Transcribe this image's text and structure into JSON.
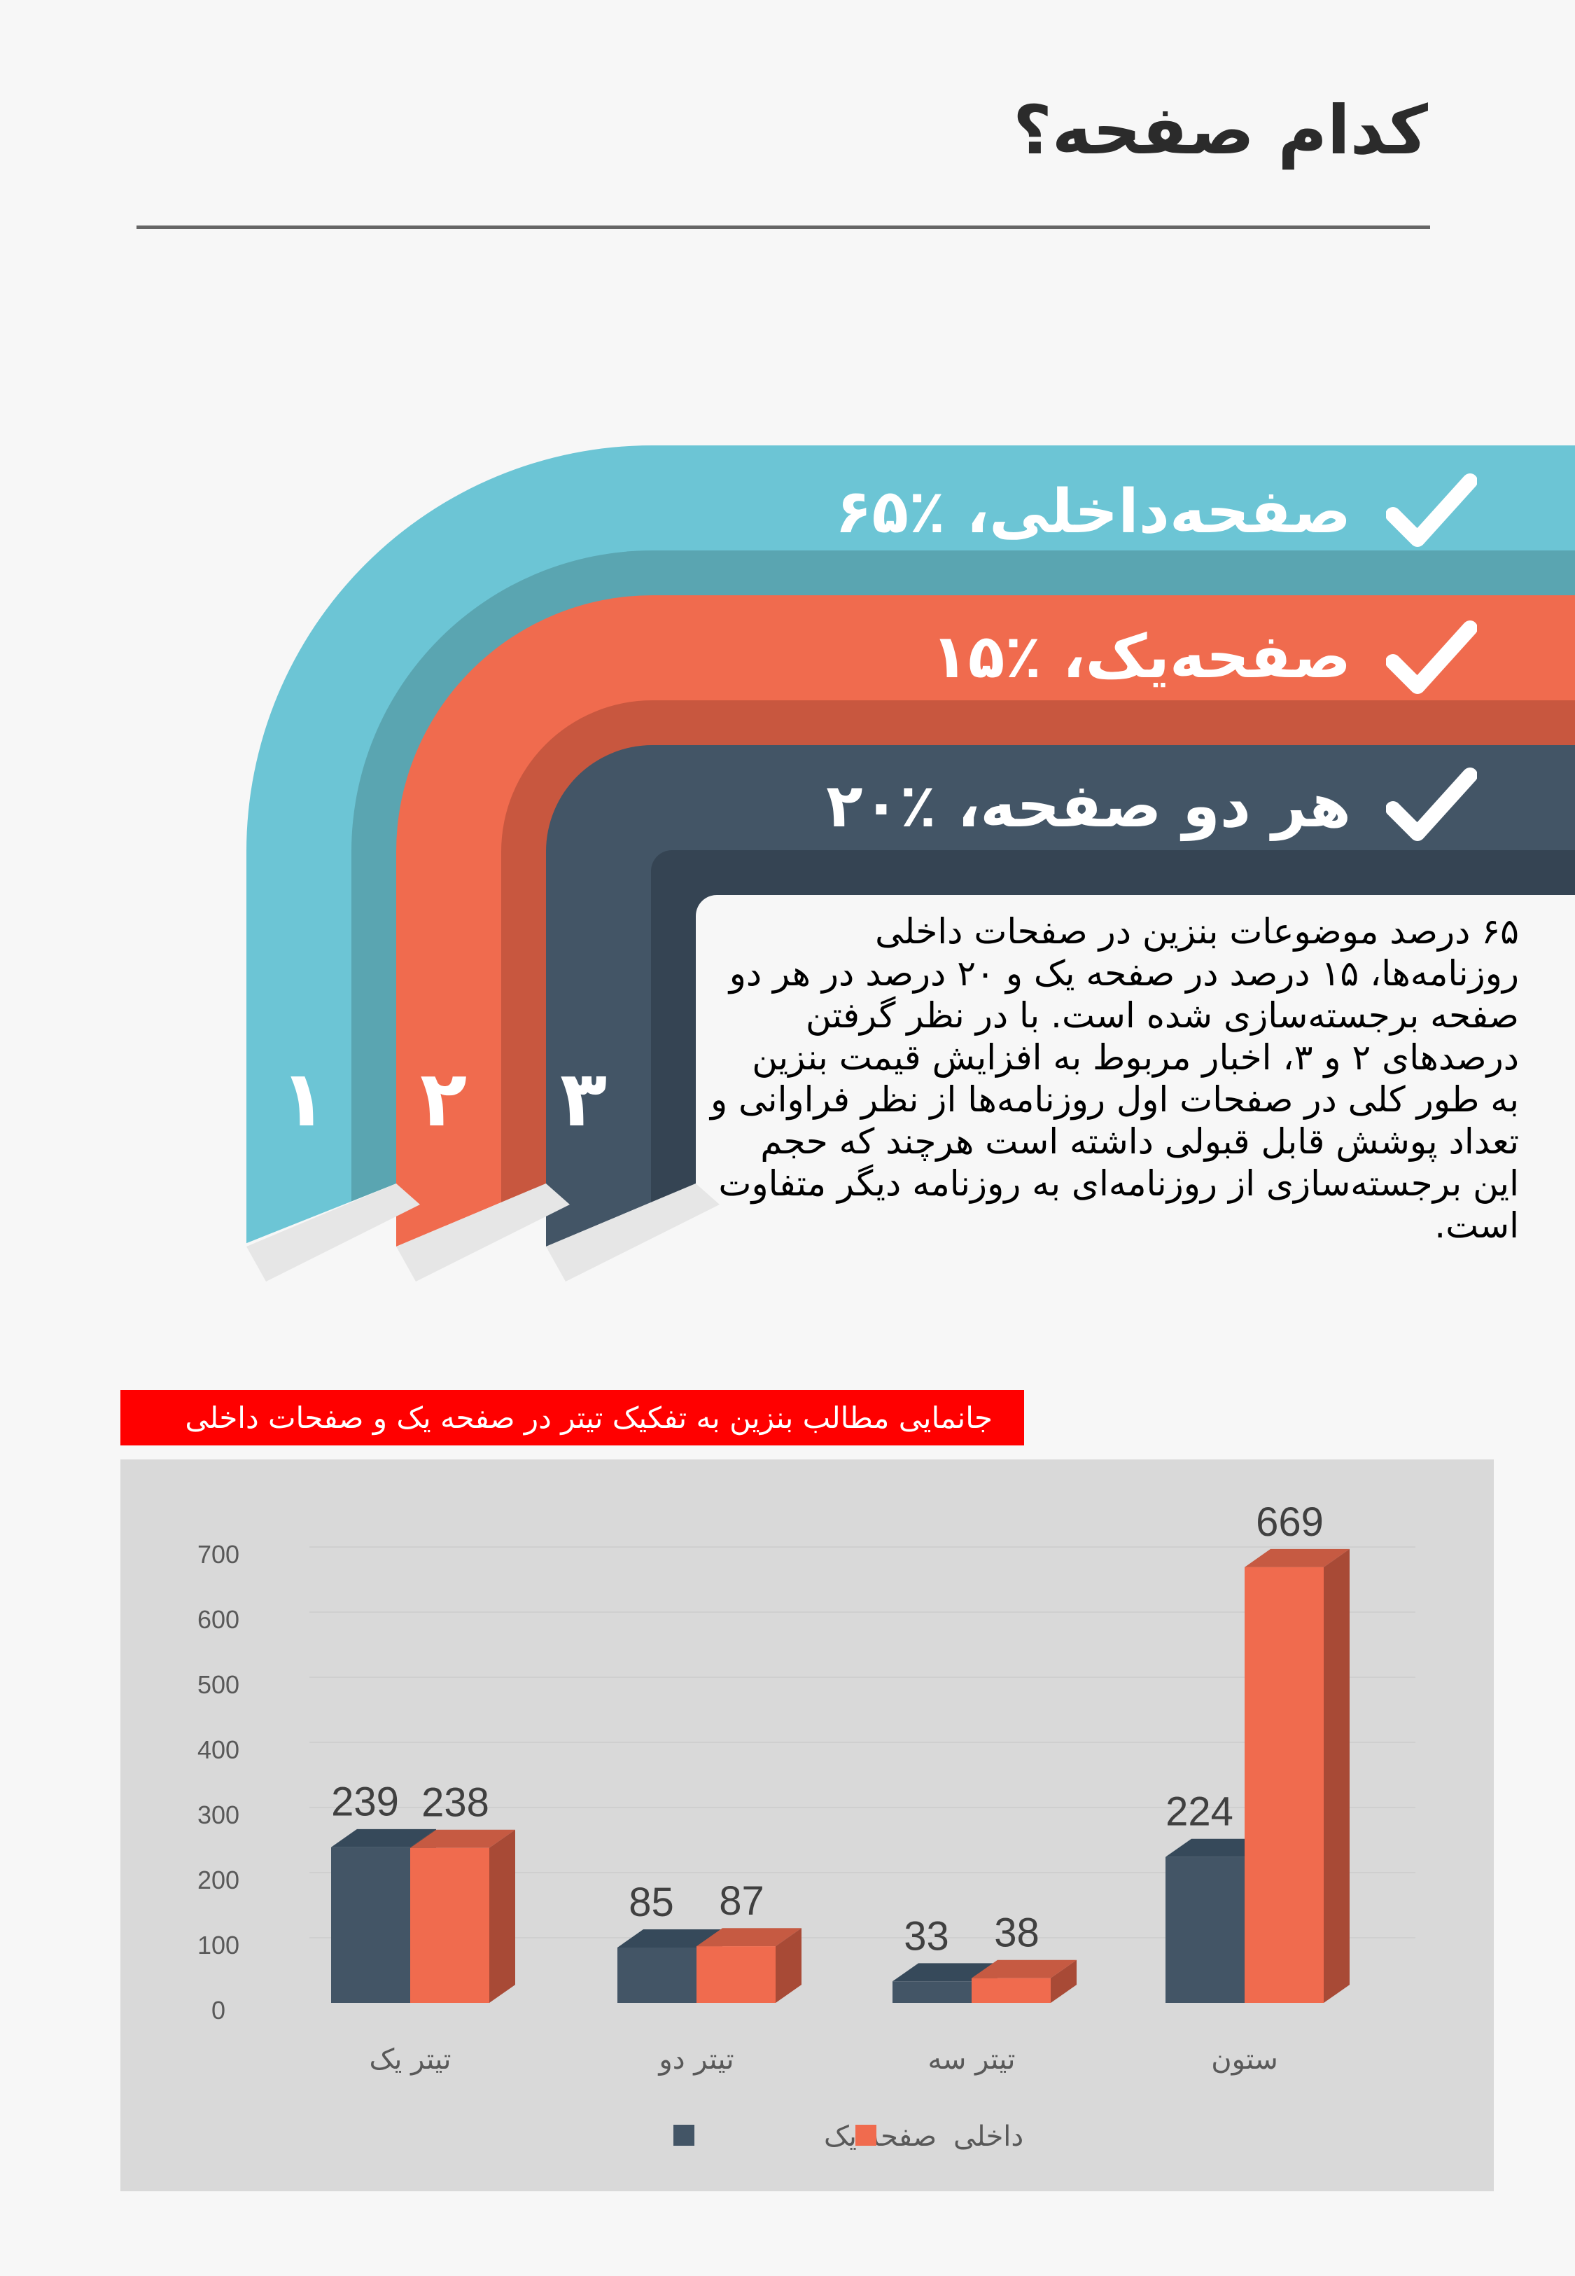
{
  "header": {
    "title": "کدام صفحه؟"
  },
  "ribbons": [
    {
      "label": "صفحه‌داخلی، ٪۶۵",
      "number": "۱",
      "icon": "check-icon",
      "color": "#6cc5d5",
      "dark": "#5aa5b1"
    },
    {
      "label": "صفحه‌یک، ٪۱۵",
      "number": "۲",
      "icon": "check-icon",
      "color": "#f06b4e",
      "dark": "#c8573f"
    },
    {
      "label": "هر دو صفحه، ٪۲۰",
      "number": "۳",
      "icon": "check-icon",
      "color": "#435566",
      "dark": "#354453"
    }
  ],
  "paragraph": [
    "۶۵ درصد موضوعات بنزین در صفحات داخلی",
    "روزنامه‌ها، ۱۵ درصد در صفحه یک و ۲۰ درصد در هر دو",
    "صفحه برجسته‌سازی شده است. با در نظر گرفتن",
    "درصدهای ۲ و ۳، اخبار مربوط به افزایش قیمت بنزین",
    "به طور کلی در صفحات اول روزنامه‌ها از نظر فراوانی و",
    "تعداد پوشش قابل قبولی داشته است هرچند که حجم",
    "این برجسته‌سازی از روزنامه‌ای به روزنامه دیگر متفاوت",
    "است."
  ],
  "chart_data": {
    "type": "bar",
    "title": "جانمایی مطالب بنزین به تفکیک تیتر  در صفحه یک و صفحات داخلی",
    "categories": [
      "تیتر یک",
      "تیتر دو",
      "تیتر سه",
      "ستون"
    ],
    "series": [
      {
        "name": "صفحه یک",
        "color": "#435566",
        "values": [
          239,
          85,
          33,
          224
        ]
      },
      {
        "name": "داخلی",
        "color": "#f06b4e",
        "values": [
          238,
          87,
          38,
          669
        ]
      }
    ],
    "yticks": [
      "0",
      "100",
      "200",
      "300",
      "400",
      "500",
      "600",
      "700"
    ],
    "ylim": [
      0,
      700
    ],
    "legend": "bottom",
    "grid": true
  }
}
